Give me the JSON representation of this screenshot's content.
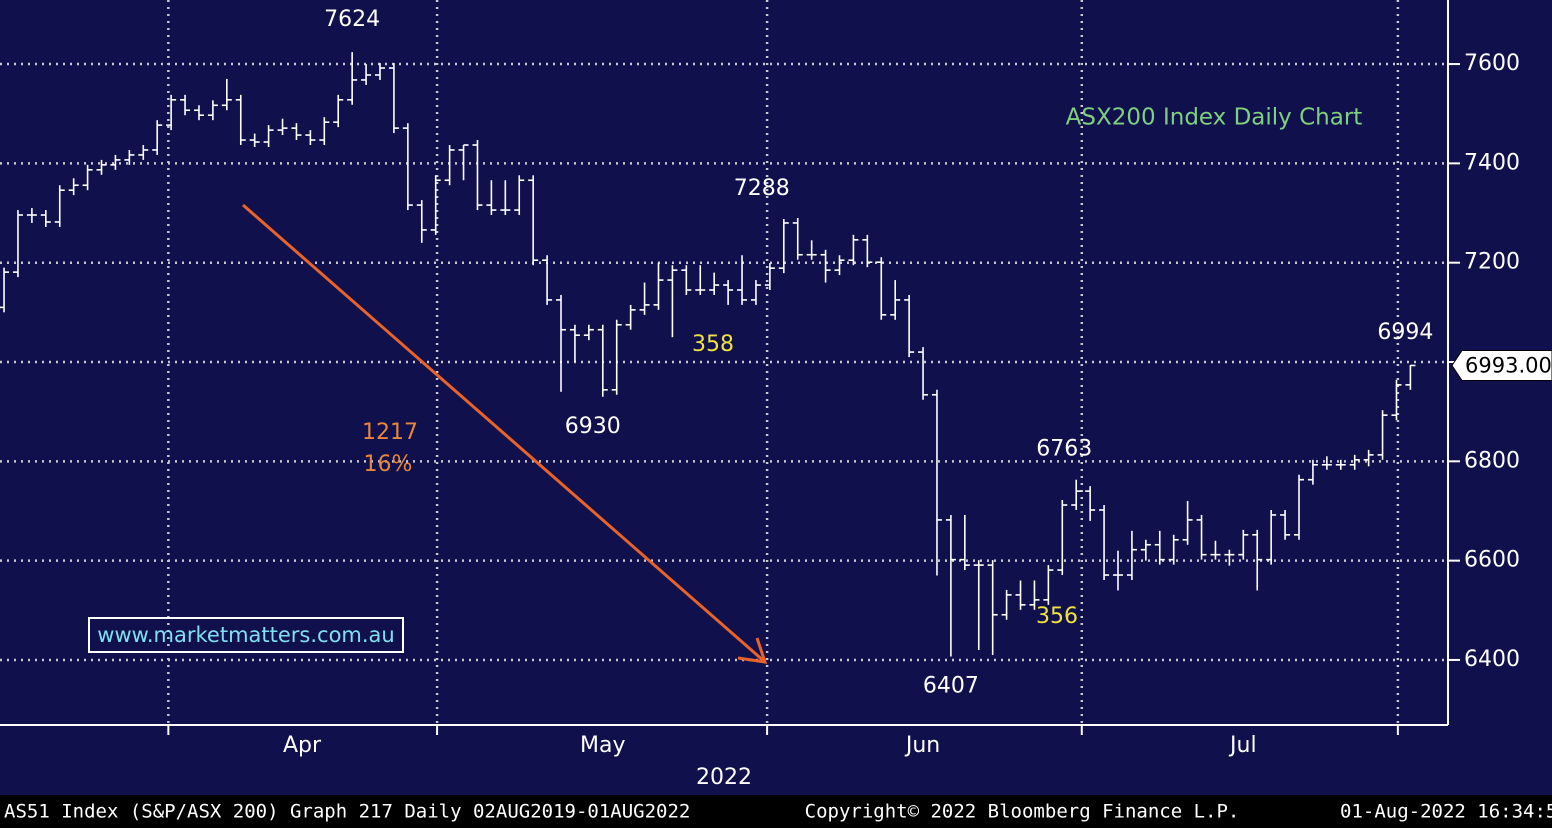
{
  "chart_data": {
    "type": "ohlc",
    "title": "ASX200 Index Daily Chart",
    "watermark": "www.marketmatters.com.au",
    "year_label": "2022",
    "footer": [
      "AS51 Index (S&P/ASX 200) Graph 217  Daily 02AUG2019-01AUG2022",
      "Copyright© 2022 Bloomberg Finance L.P.",
      "01-Aug-2022 16:34:5"
    ],
    "color": "#ffffff",
    "open": [
      7110,
      7181,
      7296,
      7296,
      7282,
      7346,
      7356,
      7387,
      7397,
      7407,
      7417,
      7427,
      7477,
      7528,
      7507,
      7497,
      7517,
      7528,
      7447,
      7443,
      7467,
      7471,
      7457,
      7447,
      7483,
      7528,
      7568,
      7578,
      7592,
      7471,
      7316,
      7266,
      7366,
      7427,
      7437,
      7316,
      7306,
      7306,
      7366,
      7205,
      7125,
      7065,
      7054,
      7065,
      6944,
      7075,
      7105,
      7115,
      7165,
      7185,
      7145,
      7145,
      7155,
      7145,
      7125,
      7155,
      7189,
      7280,
      7216,
      7216,
      7185,
      7205,
      7246,
      7201,
      7095,
      7125,
      7020,
      6934,
      6682,
      6602,
      6591,
      6591,
      6491,
      6531,
      6511,
      6521,
      6581,
      6712,
      6740,
      6702,
      6571,
      6571,
      6622,
      6632,
      6602,
      6642,
      6682,
      6612,
      6612,
      6612,
      6652,
      6602,
      6692,
      6652,
      6763,
      6793,
      6793,
      6793,
      6803,
      6813,
      6893,
      6954
    ],
    "high": [
      7190,
      7306,
      7310,
      7306,
      7356,
      7370,
      7397,
      7407,
      7417,
      7427,
      7437,
      7487,
      7538,
      7538,
      7517,
      7527,
      7570,
      7538,
      7460,
      7477,
      7490,
      7481,
      7467,
      7493,
      7538,
      7624,
      7600,
      7602,
      7602,
      7481,
      7326,
      7376,
      7437,
      7437,
      7447,
      7366,
      7366,
      7376,
      7376,
      7215,
      7135,
      7075,
      7075,
      7075,
      7085,
      7115,
      7160,
      7200,
      7195,
      7195,
      7195,
      7180,
      7165,
      7215,
      7165,
      7199,
      7288,
      7290,
      7245,
      7226,
      7215,
      7256,
      7256,
      7211,
      7165,
      7135,
      7030,
      6944,
      6692,
      6692,
      6601,
      6601,
      6541,
      6560,
      6560,
      6591,
      6722,
      6763,
      6750,
      6712,
      6620,
      6660,
      6642,
      6660,
      6652,
      6720,
      6692,
      6640,
      6622,
      6662,
      6662,
      6702,
      6702,
      6773,
      6803,
      6810,
      6803,
      6813,
      6823,
      6903,
      6964,
      6994
    ],
    "low": [
      7100,
      7171,
      7280,
      7272,
      7272,
      7336,
      7346,
      7377,
      7387,
      7397,
      7407,
      7417,
      7467,
      7497,
      7487,
      7487,
      7507,
      7437,
      7433,
      7433,
      7457,
      7447,
      7437,
      7437,
      7473,
      7518,
      7558,
      7568,
      7461,
      7306,
      7240,
      7256,
      7356,
      7366,
      7306,
      7296,
      7296,
      7296,
      7195,
      7115,
      6940,
      7000,
      7044,
      6930,
      6934,
      7065,
      7095,
      7105,
      7050,
      7135,
      7135,
      7135,
      7115,
      7115,
      7115,
      7145,
      7179,
      7206,
      7206,
      7160,
      7175,
      7195,
      7191,
      7085,
      7085,
      7010,
      6924,
      6570,
      6407,
      6581,
      6420,
      6410,
      6481,
      6501,
      6501,
      6511,
      6571,
      6702,
      6680,
      6561,
      6540,
      6561,
      6600,
      6592,
      6592,
      6632,
      6602,
      6602,
      6590,
      6602,
      6540,
      6592,
      6642,
      6642,
      6753,
      6783,
      6783,
      6783,
      6790,
      6803,
      6883,
      6944
    ],
    "close": [
      7181,
      7296,
      7296,
      7282,
      7346,
      7356,
      7387,
      7397,
      7407,
      7417,
      7427,
      7477,
      7528,
      7507,
      7497,
      7517,
      7528,
      7447,
      7443,
      7467,
      7471,
      7457,
      7447,
      7483,
      7528,
      7568,
      7578,
      7592,
      7471,
      7316,
      7266,
      7366,
      7427,
      7437,
      7316,
      7306,
      7306,
      7366,
      7205,
      7125,
      7065,
      7054,
      7065,
      6944,
      7075,
      7105,
      7115,
      7165,
      7185,
      7145,
      7145,
      7155,
      7145,
      7125,
      7155,
      7189,
      7280,
      7216,
      7216,
      7185,
      7205,
      7246,
      7201,
      7095,
      7125,
      7020,
      6934,
      6682,
      6602,
      6591,
      6591,
      6491,
      6531,
      6511,
      6521,
      6581,
      6712,
      6740,
      6702,
      6571,
      6571,
      6622,
      6632,
      6602,
      6642,
      6682,
      6612,
      6612,
      6612,
      6652,
      6602,
      6692,
      6652,
      6763,
      6793,
      6793,
      6793,
      6803,
      6813,
      6893,
      6954,
      6993
    ],
    "last_label": "6993.00",
    "xlim": [
      -0.29,
      103.7
    ],
    "xgrid": [
      11.8,
      31.1,
      54.8,
      77.4,
      100.1
    ],
    "xticks": [
      {
        "value": 21.4,
        "label": "Apr"
      },
      {
        "value": 43,
        "label": "May"
      },
      {
        "value": 66,
        "label": "Jun"
      },
      {
        "value": 89,
        "label": "Jul"
      }
    ],
    "ylim": [
      6269,
      7729
    ],
    "yticks": [
      6400,
      6600,
      6800,
      7000,
      7200,
      7400,
      7600
    ],
    "grid": true,
    "annotations": [
      {
        "text": "1217",
        "color": "#e8863a"
      },
      {
        "text": "16%",
        "color": "#e8863a"
      },
      {
        "text": "358",
        "color": "#f0e040"
      },
      {
        "text": "356",
        "color": "#f0e040"
      }
    ]
  }
}
